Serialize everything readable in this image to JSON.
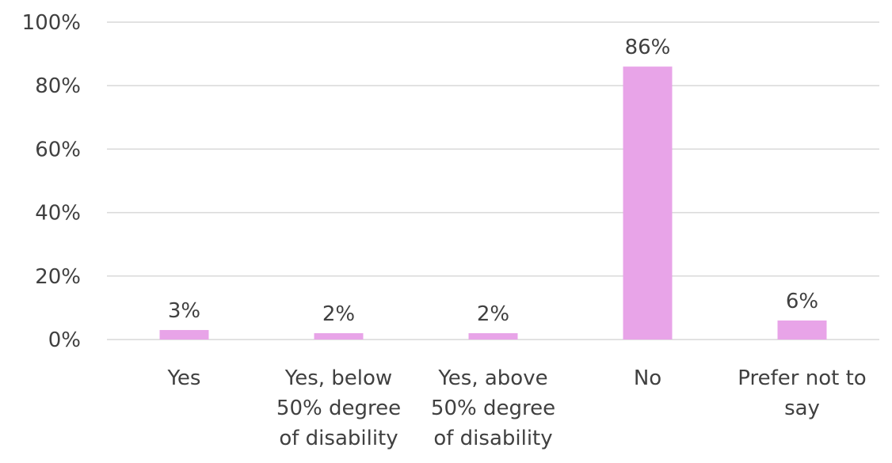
{
  "chart_data": {
    "type": "bar",
    "categories": [
      [
        "Yes"
      ],
      [
        "Yes, below",
        "50% degree",
        "of disability"
      ],
      [
        "Yes, above",
        "50% degree",
        "of disability"
      ],
      [
        "No"
      ],
      [
        "Prefer not to",
        "say"
      ]
    ],
    "values": [
      3,
      2,
      2,
      86,
      6
    ],
    "value_labels": [
      "3%",
      "2%",
      "2%",
      "86%",
      "6%"
    ],
    "y_ticks": [
      "0%",
      "20%",
      "40%",
      "60%",
      "80%",
      "100%"
    ],
    "ylim": [
      0,
      100
    ],
    "grid": true,
    "bar_color": "#e8a4e8"
  }
}
